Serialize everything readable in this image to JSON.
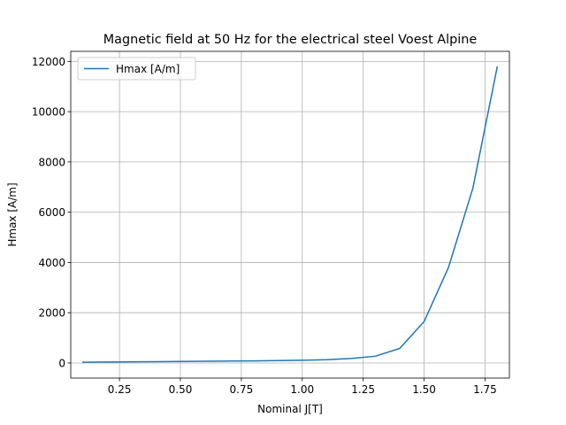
{
  "chart_data": {
    "type": "line",
    "title": "Magnetic field at 50 Hz for the electrical steel Voest Alpine",
    "xlabel": "Nominal J[T]",
    "ylabel": "Hmax [A/m]",
    "xlim": [
      0.05,
      1.85
    ],
    "ylim": [
      -600,
      12400
    ],
    "xticks": [
      0.25,
      0.5,
      0.75,
      1.0,
      1.25,
      1.5,
      1.75
    ],
    "xtick_labels": [
      "0.25",
      "0.50",
      "0.75",
      "1.00",
      "1.25",
      "1.50",
      "1.75"
    ],
    "yticks": [
      0,
      2000,
      4000,
      6000,
      8000,
      10000,
      12000
    ],
    "ytick_labels": [
      "0",
      "2000",
      "4000",
      "6000",
      "8000",
      "10000",
      "12000"
    ],
    "grid": true,
    "legend_position": "upper-left",
    "series": [
      {
        "name": "Hmax [A/m]",
        "color": "#1f77b4",
        "x": [
          0.1,
          0.2,
          0.3,
          0.4,
          0.5,
          0.6,
          0.7,
          0.8,
          0.9,
          1.0,
          1.1,
          1.2,
          1.3,
          1.4,
          1.5,
          1.6,
          1.7,
          1.8
        ],
        "y": [
          28,
          38,
          46,
          54,
          61,
          68,
          76,
          84,
          94,
          108,
          132,
          180,
          270,
          580,
          1650,
          3800,
          6950,
          11780
        ]
      }
    ]
  }
}
